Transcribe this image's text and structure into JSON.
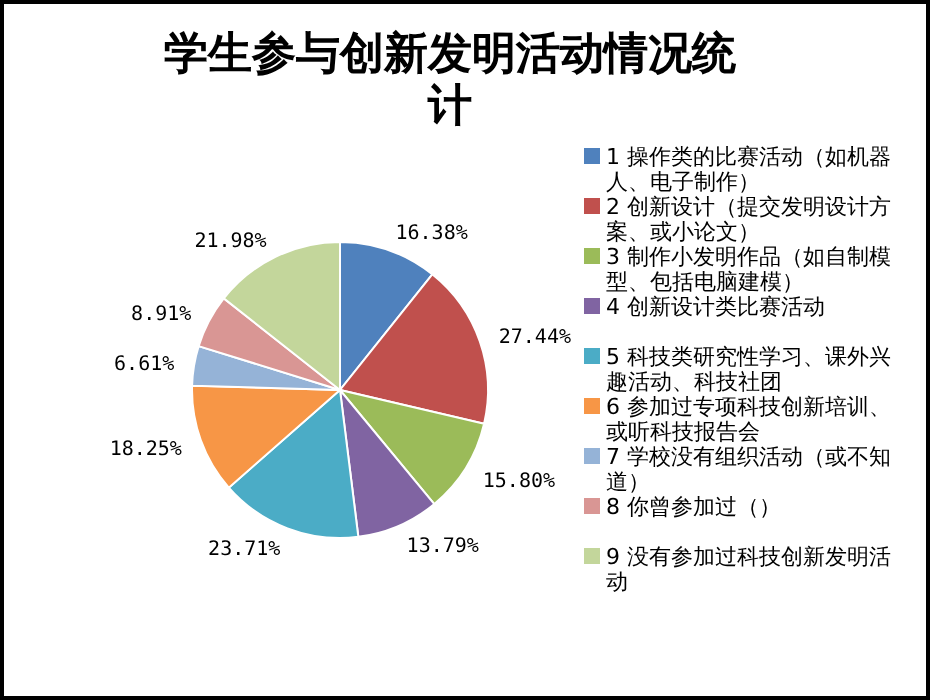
{
  "chart_data": {
    "type": "pie",
    "title": "学生参与创新发明活动情况统计",
    "categories": [
      "1 操作类的比赛活动（如机器人、电子制作）",
      "2 创新设计（提交发明设计方案、或小论文）",
      "3 制作小发明作品（如自制模型、包括电脑建模）",
      "4 创新设计类比赛活动",
      "5 科技类研究性学习、课外兴趣活动、科技社团",
      "6 参加过专项科技创新培训、或听科技报告会",
      "7 学校没有组织活动（或不知道）",
      "8 你曾参加过（）",
      "9 没有参加过科技创新发明活动"
    ],
    "values": [
      16.38,
      27.44,
      15.8,
      13.79,
      23.71,
      18.25,
      6.61,
      8.91,
      21.98
    ],
    "value_labels": [
      "16.38%",
      "27.44%",
      "15.80%",
      "13.79%",
      "23.71%",
      "18.25%",
      "6.61%",
      "8.91%",
      "21.98%"
    ],
    "colors": [
      "#4f81bd",
      "#c0504d",
      "#9bbb59",
      "#8064a2",
      "#4bacc6",
      "#f79646",
      "#95b3d7",
      "#d99694",
      "#c3d69b"
    ],
    "legend": "right"
  }
}
